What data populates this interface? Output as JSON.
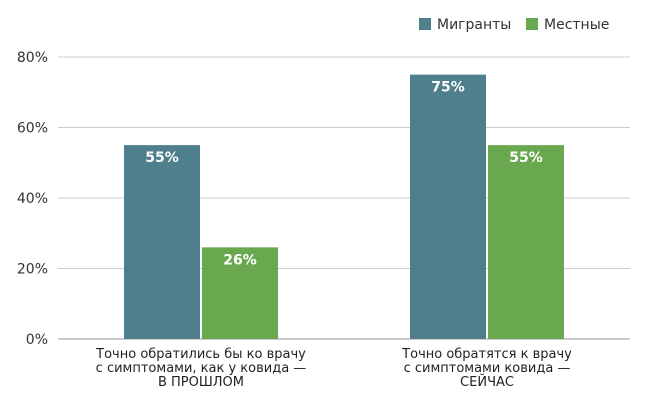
{
  "chart_data": {
    "type": "bar",
    "categories": [
      [
        "Точно обратились бы ко врачу",
        "с симптомами, как у ковида —",
        "В ПРОШЛОМ"
      ],
      [
        "Точно обратятся к врачу",
        "с симптомами ковида —",
        "СЕЙЧАС"
      ]
    ],
    "series": [
      {
        "name": "Мигранты",
        "values": [
          55,
          75
        ],
        "labels": [
          "55%",
          "75%"
        ],
        "color": "#4f7f8c"
      },
      {
        "name": "Местные",
        "values": [
          26,
          55
        ],
        "labels": [
          "26%",
          "55%"
        ],
        "color": "#6aa84f"
      }
    ],
    "ylim": [
      0,
      80
    ],
    "yticks": [
      {
        "value": 0,
        "label": "0%"
      },
      {
        "value": 20,
        "label": "20%"
      },
      {
        "value": 40,
        "label": "40%"
      },
      {
        "value": 60,
        "label": "60%"
      },
      {
        "value": 80,
        "label": "80%"
      }
    ],
    "grid": true,
    "legend": "top-right",
    "gridColor": "#cccccc"
  }
}
